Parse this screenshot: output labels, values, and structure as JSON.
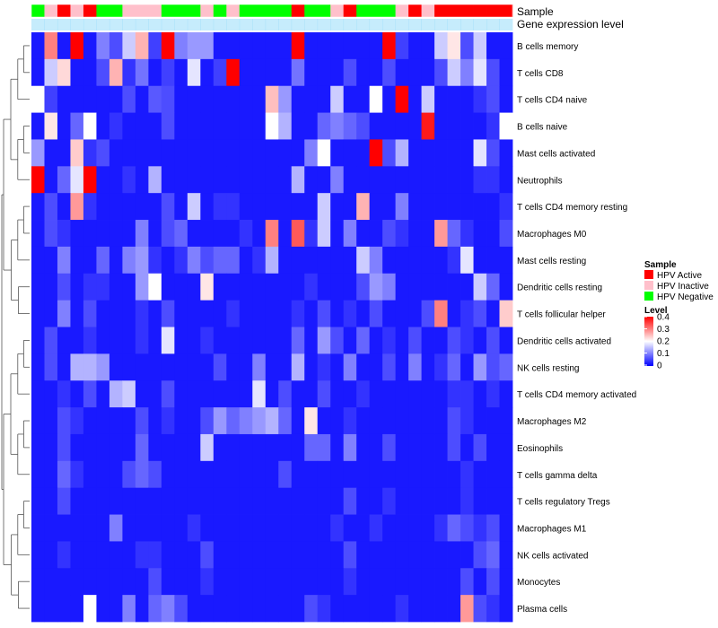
{
  "chart_data": {
    "type": "heatmap",
    "title": "",
    "annotation_labels": {
      "sample": "Sample",
      "gene_expression": "Gene expression level"
    },
    "rows": [
      "B cells memory",
      "T cells CD8",
      "T cells CD4 naive",
      "B cells naive",
      "Mast cells activated",
      "Neutrophils",
      "T cells CD4 memory resting",
      "Macrophages M0",
      "Mast cells resting",
      "Dendritic cells resting",
      "T cells follicular helper",
      "Dendritic cells activated",
      "NK cells resting",
      "T cells CD4 memory activated",
      "Macrophages M2",
      "Eosinophils",
      "T cells gamma delta",
      "T cells regulatory  Tregs",
      "Macrophages M1",
      "NK cells activated",
      "Monocytes",
      "Plasma cells"
    ],
    "sample_groups": [
      "HPV Negative",
      "HPV Inactive",
      "HPV Active",
      "HPV Inactive",
      "HPV Active",
      "HPV Negative",
      "HPV Negative",
      "HPV Inactive",
      "HPV Inactive",
      "HPV Inactive",
      "HPV Negative",
      "HPV Negative",
      "HPV Negative",
      "HPV Inactive",
      "HPV Negative",
      "HPV Inactive",
      "HPV Negative",
      "HPV Negative",
      "HPV Negative",
      "HPV Negative",
      "HPV Active",
      "HPV Negative",
      "HPV Negative",
      "HPV Inactive",
      "HPV Active",
      "HPV Negative",
      "HPV Negative",
      "HPV Negative",
      "HPV Inactive",
      "HPV Active",
      "HPV Inactive",
      "HPV Active",
      "HPV Active",
      "HPV Active",
      "HPV Active",
      "HPV Active",
      "HPV Active"
    ],
    "gene_expression_level": [
      0,
      0,
      0,
      0,
      0,
      0,
      0,
      0,
      0,
      0,
      0,
      0,
      0,
      0,
      0,
      0,
      0,
      0,
      0,
      0,
      0,
      0,
      0,
      0,
      0,
      0,
      0,
      0,
      0,
      0,
      0,
      0,
      0,
      0,
      0,
      0,
      0
    ],
    "values": [
      [
        0.02,
        0.3,
        0.02,
        0.4,
        0.02,
        0.1,
        0.06,
        0.16,
        0.26,
        0.05,
        0.4,
        0.1,
        0.12,
        0.12,
        0.02,
        0.02,
        0.02,
        0.02,
        0.02,
        0.02,
        0.4,
        0.02,
        0.02,
        0.02,
        0.02,
        0.02,
        0.02,
        0.4,
        0.05,
        0.02,
        0.02,
        0.16,
        0.22,
        0.06,
        0.16,
        0.02,
        0.02
      ],
      [
        0.02,
        0.16,
        0.23,
        0.02,
        0.02,
        0.06,
        0.26,
        0.04,
        0.09,
        0.02,
        0.05,
        0.02,
        0.18,
        0.02,
        0.05,
        0.4,
        0.02,
        0.02,
        0.02,
        0.02,
        0.09,
        0.02,
        0.02,
        0.02,
        0.06,
        0.02,
        0.02,
        0.06,
        0.02,
        0.02,
        0.02,
        0.06,
        0.16,
        0.1,
        0.18,
        0.06,
        0.02
      ],
      [
        0.2,
        0.05,
        0.02,
        0.02,
        0.02,
        0.02,
        0.02,
        0.06,
        0.02,
        0.07,
        0.06,
        0.02,
        0.02,
        0.02,
        0.02,
        0.02,
        0.02,
        0.02,
        0.25,
        0.12,
        0.02,
        0.02,
        0.02,
        0.16,
        0.02,
        0.02,
        0.2,
        0.02,
        0.4,
        0.02,
        0.16,
        0.02,
        0.02,
        0.02,
        0.04,
        0.06,
        0.02
      ],
      [
        0.02,
        0.22,
        0.02,
        0.08,
        0.2,
        0.02,
        0.04,
        0.02,
        0.02,
        0.02,
        0.06,
        0.02,
        0.02,
        0.02,
        0.02,
        0.02,
        0.02,
        0.02,
        0.2,
        0.14,
        0.02,
        0.02,
        0.08,
        0.1,
        0.08,
        0.06,
        0.02,
        0.02,
        0.02,
        0.02,
        0.38,
        0.02,
        0.02,
        0.02,
        0.02,
        0.04,
        0.2
      ],
      [
        0.12,
        0.02,
        0.02,
        0.24,
        0.04,
        0.06,
        0.02,
        0.02,
        0.02,
        0.02,
        0.02,
        0.02,
        0.02,
        0.02,
        0.02,
        0.02,
        0.02,
        0.02,
        0.02,
        0.02,
        0.02,
        0.1,
        0.2,
        0.02,
        0.02,
        0.02,
        0.4,
        0.06,
        0.14,
        0.02,
        0.02,
        0.02,
        0.02,
        0.02,
        0.18,
        0.06,
        0.02
      ],
      [
        0.4,
        0.02,
        0.08,
        0.18,
        0.4,
        0.02,
        0.02,
        0.04,
        0.02,
        0.14,
        0.02,
        0.02,
        0.02,
        0.02,
        0.02,
        0.02,
        0.02,
        0.02,
        0.02,
        0.02,
        0.14,
        0.02,
        0.02,
        0.1,
        0.02,
        0.02,
        0.02,
        0.02,
        0.02,
        0.02,
        0.02,
        0.02,
        0.02,
        0.02,
        0.04,
        0.04,
        0.02
      ],
      [
        0.02,
        0.06,
        0.02,
        0.28,
        0.04,
        0.02,
        0.02,
        0.02,
        0.02,
        0.02,
        0.06,
        0.02,
        0.16,
        0.02,
        0.04,
        0.04,
        0.02,
        0.02,
        0.02,
        0.02,
        0.02,
        0.02,
        0.16,
        0.02,
        0.02,
        0.26,
        0.02,
        0.02,
        0.1,
        0.02,
        0.02,
        0.02,
        0.02,
        0.02,
        0.02,
        0.02,
        0.04
      ],
      [
        0.02,
        0.06,
        0.04,
        0.02,
        0.02,
        0.02,
        0.02,
        0.02,
        0.1,
        0.02,
        0.06,
        0.08,
        0.02,
        0.02,
        0.02,
        0.02,
        0.04,
        0.02,
        0.3,
        0.02,
        0.33,
        0.04,
        0.16,
        0.02,
        0.1,
        0.02,
        0.02,
        0.06,
        0.04,
        0.02,
        0.02,
        0.28,
        0.08,
        0.04,
        0.02,
        0.02,
        0.06
      ],
      [
        0.02,
        0.02,
        0.1,
        0.02,
        0.02,
        0.08,
        0.02,
        0.1,
        0.12,
        0.04,
        0.02,
        0.04,
        0.1,
        0.06,
        0.08,
        0.08,
        0.02,
        0.04,
        0.14,
        0.02,
        0.02,
        0.02,
        0.02,
        0.02,
        0.02,
        0.16,
        0.1,
        0.02,
        0.02,
        0.02,
        0.02,
        0.02,
        0.04,
        0.18,
        0.02,
        0.02,
        0.02
      ],
      [
        0.02,
        0.02,
        0.06,
        0.02,
        0.04,
        0.04,
        0.02,
        0.02,
        0.12,
        0.2,
        0.02,
        0.02,
        0.02,
        0.22,
        0.02,
        0.02,
        0.02,
        0.02,
        0.02,
        0.02,
        0.02,
        0.04,
        0.02,
        0.02,
        0.02,
        0.06,
        0.12,
        0.1,
        0.02,
        0.02,
        0.02,
        0.02,
        0.02,
        0.02,
        0.16,
        0.08,
        0.02
      ],
      [
        0.02,
        0.02,
        0.1,
        0.02,
        0.06,
        0.02,
        0.02,
        0.02,
        0.04,
        0.02,
        0.06,
        0.02,
        0.02,
        0.02,
        0.02,
        0.04,
        0.02,
        0.02,
        0.02,
        0.02,
        0.04,
        0.02,
        0.06,
        0.02,
        0.04,
        0.02,
        0.06,
        0.02,
        0.02,
        0.02,
        0.06,
        0.3,
        0.02,
        0.04,
        0.06,
        0.02,
        0.24
      ],
      [
        0.02,
        0.06,
        0.02,
        0.02,
        0.04,
        0.02,
        0.02,
        0.02,
        0.04,
        0.02,
        0.18,
        0.02,
        0.02,
        0.04,
        0.02,
        0.02,
        0.02,
        0.02,
        0.02,
        0.02,
        0.08,
        0.02,
        0.12,
        0.06,
        0.02,
        0.08,
        0.02,
        0.04,
        0.02,
        0.06,
        0.02,
        0.02,
        0.06,
        0.04,
        0.02,
        0.06,
        0.02
      ],
      [
        0.02,
        0.06,
        0.02,
        0.14,
        0.14,
        0.12,
        0.02,
        0.02,
        0.02,
        0.02,
        0.02,
        0.02,
        0.02,
        0.02,
        0.06,
        0.02,
        0.02,
        0.1,
        0.02,
        0.02,
        0.14,
        0.02,
        0.04,
        0.02,
        0.1,
        0.02,
        0.02,
        0.06,
        0.02,
        0.1,
        0.02,
        0.04,
        0.08,
        0.02,
        0.12,
        0.06,
        0.08
      ],
      [
        0.02,
        0.02,
        0.04,
        0.02,
        0.06,
        0.02,
        0.14,
        0.16,
        0.02,
        0.02,
        0.06,
        0.02,
        0.02,
        0.02,
        0.02,
        0.02,
        0.02,
        0.18,
        0.02,
        0.06,
        0.02,
        0.02,
        0.06,
        0.02,
        0.02,
        0.04,
        0.02,
        0.02,
        0.02,
        0.02,
        0.02,
        0.02,
        0.04,
        0.04,
        0.02,
        0.04,
        0.02
      ],
      [
        0.02,
        0.02,
        0.06,
        0.04,
        0.02,
        0.02,
        0.02,
        0.02,
        0.06,
        0.02,
        0.04,
        0.02,
        0.02,
        0.06,
        0.12,
        0.08,
        0.1,
        0.12,
        0.14,
        0.08,
        0.02,
        0.22,
        0.02,
        0.02,
        0.04,
        0.02,
        0.02,
        0.02,
        0.02,
        0.02,
        0.02,
        0.02,
        0.06,
        0.04,
        0.02,
        0.02,
        0.02
      ],
      [
        0.02,
        0.02,
        0.06,
        0.02,
        0.02,
        0.02,
        0.02,
        0.02,
        0.08,
        0.02,
        0.02,
        0.02,
        0.02,
        0.16,
        0.02,
        0.02,
        0.02,
        0.02,
        0.02,
        0.02,
        0.02,
        0.08,
        0.08,
        0.02,
        0.1,
        0.02,
        0.02,
        0.06,
        0.02,
        0.02,
        0.02,
        0.02,
        0.06,
        0.02,
        0.06,
        0.02,
        0.02
      ],
      [
        0.02,
        0.02,
        0.08,
        0.04,
        0.02,
        0.02,
        0.02,
        0.06,
        0.08,
        0.06,
        0.02,
        0.02,
        0.02,
        0.02,
        0.02,
        0.02,
        0.02,
        0.02,
        0.02,
        0.06,
        0.02,
        0.02,
        0.02,
        0.02,
        0.02,
        0.02,
        0.02,
        0.02,
        0.02,
        0.02,
        0.02,
        0.02,
        0.02,
        0.04,
        0.02,
        0.02,
        0.02
      ],
      [
        0.02,
        0.02,
        0.06,
        0.02,
        0.02,
        0.02,
        0.02,
        0.02,
        0.02,
        0.02,
        0.02,
        0.02,
        0.02,
        0.02,
        0.02,
        0.02,
        0.02,
        0.02,
        0.02,
        0.02,
        0.02,
        0.02,
        0.02,
        0.02,
        0.06,
        0.02,
        0.02,
        0.04,
        0.02,
        0.02,
        0.02,
        0.02,
        0.02,
        0.04,
        0.02,
        0.02,
        0.02
      ],
      [
        0.02,
        0.02,
        0.02,
        0.02,
        0.02,
        0.02,
        0.1,
        0.02,
        0.02,
        0.02,
        0.02,
        0.02,
        0.04,
        0.02,
        0.02,
        0.02,
        0.02,
        0.02,
        0.02,
        0.02,
        0.02,
        0.02,
        0.02,
        0.04,
        0.02,
        0.02,
        0.04,
        0.02,
        0.02,
        0.02,
        0.02,
        0.04,
        0.08,
        0.06,
        0.04,
        0.06,
        0.02
      ],
      [
        0.02,
        0.02,
        0.04,
        0.02,
        0.02,
        0.02,
        0.02,
        0.02,
        0.04,
        0.04,
        0.02,
        0.02,
        0.02,
        0.06,
        0.02,
        0.02,
        0.02,
        0.02,
        0.02,
        0.02,
        0.02,
        0.02,
        0.02,
        0.02,
        0.06,
        0.02,
        0.02,
        0.02,
        0.02,
        0.02,
        0.02,
        0.02,
        0.02,
        0.02,
        0.06,
        0.08,
        0.02
      ],
      [
        0.02,
        0.02,
        0.02,
        0.02,
        0.02,
        0.02,
        0.02,
        0.02,
        0.02,
        0.06,
        0.02,
        0.02,
        0.02,
        0.04,
        0.02,
        0.02,
        0.02,
        0.02,
        0.02,
        0.02,
        0.02,
        0.02,
        0.02,
        0.02,
        0.04,
        0.02,
        0.02,
        0.02,
        0.02,
        0.02,
        0.02,
        0.02,
        0.02,
        0.06,
        0.02,
        0.06,
        0.02
      ],
      [
        0.02,
        0.02,
        0.02,
        0.02,
        0.2,
        0.02,
        0.02,
        0.1,
        0.02,
        0.08,
        0.1,
        0.06,
        0.02,
        0.02,
        0.02,
        0.02,
        0.02,
        0.02,
        0.02,
        0.02,
        0.02,
        0.06,
        0.04,
        0.02,
        0.02,
        0.02,
        0.02,
        0.02,
        0.04,
        0.02,
        0.02,
        0.02,
        0.02,
        0.28,
        0.06,
        0.04,
        0.02
      ]
    ],
    "color_scale": {
      "low": "#0000ff",
      "mid": "#ffffff",
      "high": "#ff0000",
      "range": [
        0,
        0.4
      ]
    },
    "legend": {
      "sample_title": "Sample",
      "sample_items": [
        {
          "label": "HPV Active",
          "color": "#ff0000"
        },
        {
          "label": "HPV Inactive",
          "color": "#ffc0cb"
        },
        {
          "label": "HPV Negative",
          "color": "#00ff00"
        }
      ],
      "level_title": "Level",
      "level_ticks": [
        "0.4",
        "0.3",
        "0.2",
        "0.1",
        "0"
      ],
      "placement": "right"
    },
    "gene_expression_color": "#5bc8f5",
    "grid": false,
    "dendrogram": "rows"
  }
}
